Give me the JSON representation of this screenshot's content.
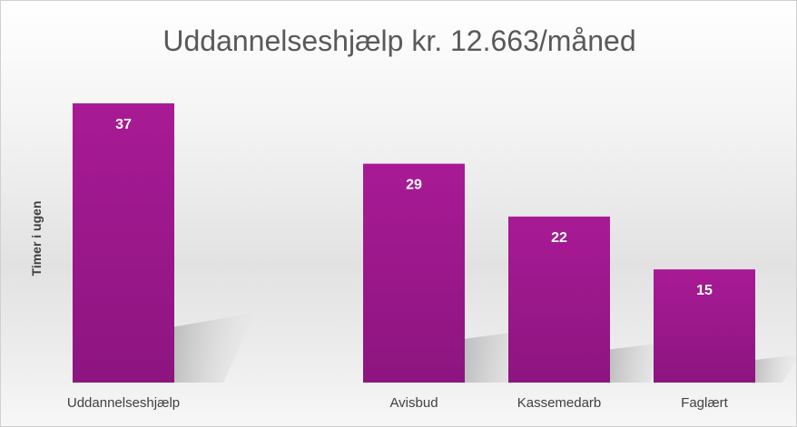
{
  "chart_data": {
    "type": "bar",
    "title": "Uddannelseshjælp kr. 12.663/måned",
    "ylabel": "Timer i ugen",
    "xlabel": "",
    "categories": [
      "Uddannelseshjælp",
      "",
      "Avisbud",
      "Kassemedarb",
      "Faglært"
    ],
    "values": [
      37,
      null,
      29,
      22,
      15
    ],
    "ylim": [
      0,
      37
    ],
    "grid": false,
    "legend": "none",
    "data_labels": true,
    "bar_color": "#a3198f"
  }
}
